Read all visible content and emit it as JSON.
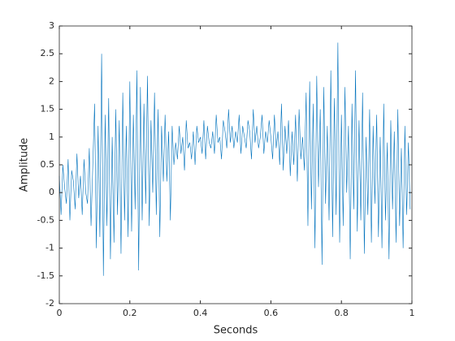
{
  "chart_data": {
    "type": "line",
    "x_label": "Seconds",
    "y_label": "Amplitude",
    "xlim": [
      0,
      1
    ],
    "xticks": [
      0,
      0.2,
      0.4,
      0.6,
      0.8,
      1
    ],
    "ylim": [
      -2,
      3
    ],
    "yticks": [
      -2,
      -1.5,
      -1,
      -0.5,
      0,
      0.5,
      1,
      1.5,
      2,
      2.5,
      3
    ],
    "color": "#0072bd",
    "x": [
      0,
      0.005,
      0.01,
      0.015,
      0.02,
      0.025,
      0.03,
      0.035,
      0.04,
      0.045,
      0.05,
      0.055,
      0.06,
      0.065,
      0.07,
      0.075,
      0.08,
      0.085,
      0.09,
      0.095,
      0.1,
      0.105,
      0.11,
      0.115,
      0.12,
      0.125,
      0.13,
      0.135,
      0.14,
      0.145,
      0.15,
      0.155,
      0.16,
      0.165,
      0.17,
      0.175,
      0.18,
      0.185,
      0.19,
      0.195,
      0.2,
      0.205,
      0.21,
      0.215,
      0.22,
      0.225,
      0.23,
      0.235,
      0.24,
      0.245,
      0.25,
      0.255,
      0.26,
      0.265,
      0.27,
      0.275,
      0.28,
      0.285,
      0.29,
      0.295,
      0.3,
      0.305,
      0.31,
      0.315,
      0.32,
      0.325,
      0.33,
      0.335,
      0.34,
      0.345,
      0.35,
      0.355,
      0.36,
      0.365,
      0.37,
      0.375,
      0.38,
      0.385,
      0.39,
      0.395,
      0.4,
      0.405,
      0.41,
      0.415,
      0.42,
      0.425,
      0.43,
      0.435,
      0.44,
      0.445,
      0.45,
      0.455,
      0.46,
      0.465,
      0.47,
      0.475,
      0.48,
      0.485,
      0.49,
      0.495,
      0.5,
      0.505,
      0.51,
      0.515,
      0.52,
      0.525,
      0.53,
      0.535,
      0.54,
      0.545,
      0.55,
      0.555,
      0.56,
      0.565,
      0.57,
      0.575,
      0.58,
      0.585,
      0.59,
      0.595,
      0.6,
      0.605,
      0.61,
      0.615,
      0.62,
      0.625,
      0.63,
      0.635,
      0.64,
      0.645,
      0.65,
      0.655,
      0.66,
      0.665,
      0.67,
      0.675,
      0.68,
      0.685,
      0.69,
      0.695,
      0.7,
      0.705,
      0.71,
      0.715,
      0.72,
      0.725,
      0.73,
      0.735,
      0.74,
      0.745,
      0.75,
      0.755,
      0.76,
      0.765,
      0.77,
      0.775,
      0.78,
      0.785,
      0.79,
      0.795,
      0.8,
      0.805,
      0.81,
      0.815,
      0.82,
      0.825,
      0.83,
      0.835,
      0.84,
      0.845,
      0.85,
      0.855,
      0.86,
      0.865,
      0.87,
      0.875,
      0.88,
      0.885,
      0.89,
      0.895,
      0.9,
      0.905,
      0.91,
      0.915,
      0.92,
      0.925,
      0.93,
      0.935,
      0.94,
      0.945,
      0.95,
      0.955,
      0.96,
      0.965,
      0.97,
      0.975,
      0.98,
      0.985,
      0.99,
      0.995
    ],
    "values": [
      0.3,
      -0.4,
      0.5,
      0.1,
      -0.2,
      0.6,
      -0.5,
      0.4,
      0.2,
      -0.3,
      0.7,
      -0.1,
      0.3,
      -0.4,
      0.6,
      0,
      -0.2,
      0.8,
      -0.6,
      0.5,
      1.6,
      -1.0,
      1.2,
      -0.8,
      2.5,
      -1.5,
      1.4,
      -0.6,
      1.7,
      -1.2,
      1.0,
      -0.9,
      1.5,
      -0.4,
      1.3,
      -1.1,
      1.8,
      -0.5,
      1.2,
      -0.8,
      2.0,
      -0.7,
      1.4,
      -0.3,
      2.2,
      -1.4,
      1.9,
      -0.5,
      1.6,
      -0.2,
      2.1,
      -0.6,
      1.3,
      0,
      1.8,
      -0.4,
      1.5,
      -0.8,
      1.2,
      0.2,
      1.4,
      0.2,
      1.1,
      -0.5,
      1.2,
      0.5,
      0.9,
      0.6,
      1.2,
      0.7,
      1.0,
      0.4,
      1.3,
      0.8,
      0.9,
      0.6,
      1.1,
      0.5,
      1.2,
      0.9,
      1.0,
      0.7,
      1.3,
      0.6,
      1.2,
      0.9,
      0.8,
      1.1,
      0.7,
      1.4,
      0.9,
      1.0,
      0.6,
      1.3,
      1.1,
      0.8,
      1.5,
      0.9,
      1.2,
      0.8,
      1.1,
      0.9,
      1.4,
      0.7,
      1.2,
      1.0,
      0.8,
      1.3,
      1.1,
      0.6,
      1.5,
      0.9,
      1.2,
      0.8,
      1.0,
      1.4,
      0.7,
      1.1,
      0.9,
      1.3,
      1.0,
      0.6,
      1.4,
      0.8,
      1.1,
      0.5,
      1.6,
      0.4,
      1.2,
      0.7,
      1.3,
      0.3,
      1.1,
      0.5,
      1.4,
      0.2,
      1.5,
      0.6,
      1.0,
      0.4,
      1.8,
      -0.6,
      2.0,
      -0.3,
      1.6,
      -1.0,
      2.1,
      0.1,
      1.5,
      -1.3,
      1.9,
      -0.2,
      1.2,
      -0.5,
      2.2,
      -0.8,
      1.7,
      -0.4,
      2.7,
      -0.9,
      1.4,
      -0.6,
      1.9,
      0,
      1.2,
      -1.2,
      1.6,
      -0.3,
      2.2,
      -0.7,
      1.3,
      -0.5,
      1.8,
      -1.1,
      1.0,
      -0.4,
      1.5,
      -0.9,
      1.2,
      -0.2,
      1.4,
      -0.8,
      1.0,
      -1.0,
      1.6,
      -0.5,
      0.9,
      -1.2,
      1.3,
      -0.3,
      1.1,
      -0.9,
      1.5,
      -0.6,
      0.8,
      -1.0,
      1.2,
      -0.4,
      0.9,
      -0.3
    ]
  }
}
